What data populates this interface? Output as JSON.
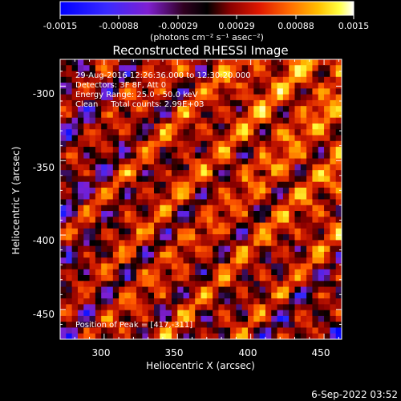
{
  "colorbar": {
    "ticks": [
      "-0.0015",
      "-0.00088",
      "-0.00029",
      "0.00029",
      "0.00088",
      "0.0015"
    ],
    "unit_label": "(photons cm⁻² s⁻¹ asec⁻²)"
  },
  "chart_data": {
    "type": "heatmap",
    "title": "Reconstructed RHESSI Image",
    "xlabel": "Heliocentric X (arcsec)",
    "ylabel": "Heliocentric Y (arcsec)",
    "xlim": [
      270,
      462
    ],
    "ylim": [
      -470,
      -282
    ],
    "xticks": [
      "300",
      "350",
      "400",
      "450"
    ],
    "yticks": [
      "-300",
      "-350",
      "-400",
      "-450"
    ],
    "zlim": [
      -0.0015,
      0.0015
    ],
    "colormap": [
      "#0000ff",
      "#2a2aff",
      "#7f1fd0",
      "#000000",
      "#8b0000",
      "#d01c00",
      "#ff5a00",
      "#ffb400",
      "#ffff40",
      "#ffffff"
    ],
    "annotations": [
      "29-Aug-2016 12:26:36.000 to 12:30:20.000",
      "Detectors: 3F 8F, Att 0",
      "Energy Range: 25.0 - 50.0 keV",
      "Clean     Total counts: 2.99E+03"
    ],
    "peak_label": "Position of Peak = [417,-311]"
  },
  "footer": {
    "timestamp": "6-Sep-2022 03:52"
  }
}
